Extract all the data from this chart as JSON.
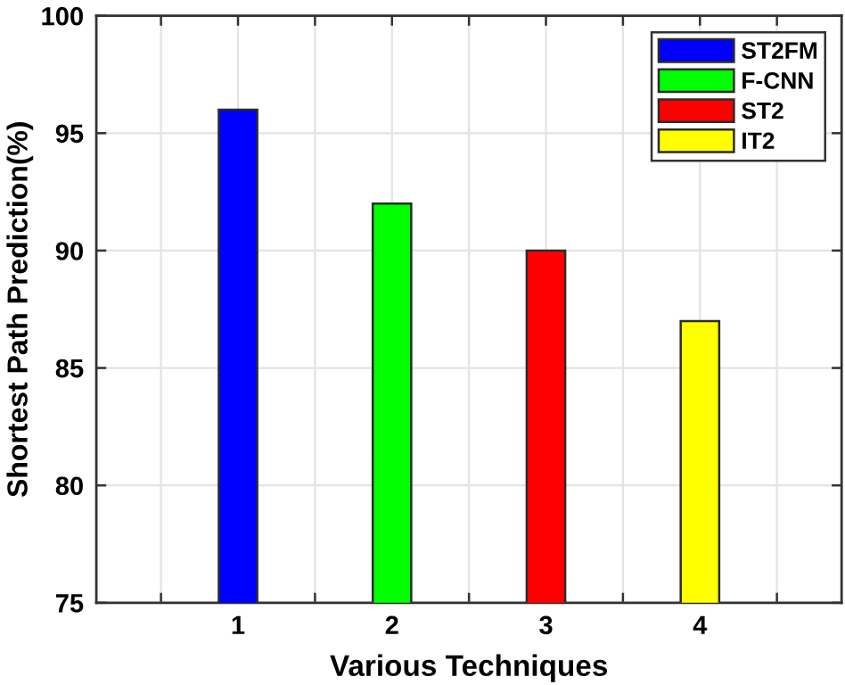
{
  "chart_data": {
    "type": "bar",
    "xlabel": "Various Techniques",
    "ylabel": "Shortest Path Prediction(%)",
    "series": [
      {
        "name": "ST2FM",
        "color": "#0000ff",
        "x": [
          1
        ],
        "values": [
          96
        ]
      },
      {
        "name": "F-CNN",
        "color": "#00ff00",
        "x": [
          2
        ],
        "values": [
          92
        ]
      },
      {
        "name": "ST2",
        "color": "#ff0000",
        "x": [
          3
        ],
        "values": [
          90
        ]
      },
      {
        "name": "IT2",
        "color": "#ffff00",
        "x": [
          4
        ],
        "values": [
          87
        ]
      }
    ],
    "xlim": [
      0.08,
      4.92
    ],
    "xticks": [
      {
        "value": 0.5,
        "label": null
      },
      1,
      {
        "value": 1.5,
        "label": null
      },
      2,
      {
        "value": 2.5,
        "label": null
      },
      3,
      {
        "value": 3.5,
        "label": null
      },
      4,
      {
        "value": 4.5,
        "label": null
      }
    ],
    "ylim": [
      75,
      100
    ],
    "yticks": [
      75,
      80,
      85,
      90,
      95,
      100
    ],
    "grid": true,
    "legend": "top right"
  }
}
